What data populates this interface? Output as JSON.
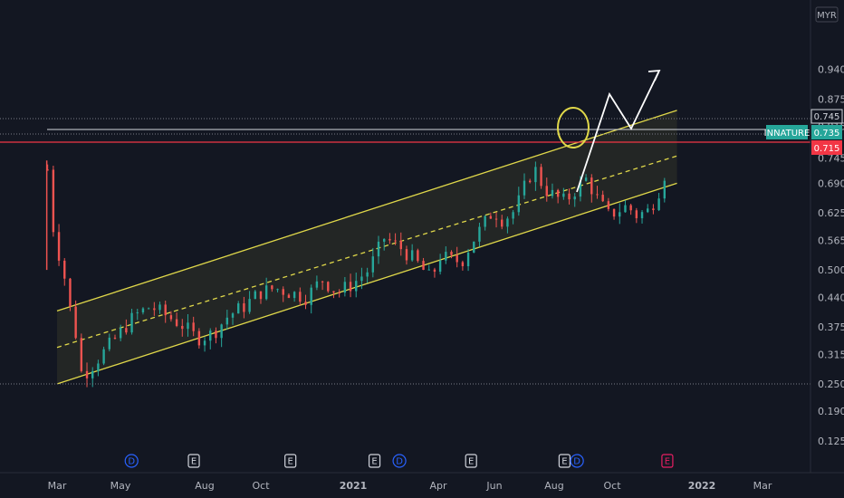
{
  "chart_data": {
    "type": "candlestick",
    "currency_label": "MYR",
    "symbol": "INNATURE",
    "yticks": [
      "0.940",
      "0.875",
      "0.815",
      "0.745",
      "0.690",
      "0.625",
      "0.565",
      "0.500",
      "0.440",
      "0.375",
      "0.315",
      "0.250",
      "0.190",
      "0.125"
    ],
    "xticks": [
      "Mar",
      "May",
      "Aug",
      "Oct",
      "2021",
      "Apr",
      "Jun",
      "Aug",
      "Oct",
      "2022",
      "Mar"
    ],
    "last_price": "0.735",
    "resistance_price": "0.715",
    "level_price": "0.745",
    "support_level": "0.250",
    "ipo_high": "0.74",
    "channel": {
      "upper_start": 0.41,
      "upper_end": 0.85,
      "mid_start": 0.33,
      "mid_end": 0.75,
      "lower_start": 0.25,
      "lower_end": 0.69
    },
    "events": [
      {
        "type": "D",
        "x_month": 2.1
      },
      {
        "type": "E",
        "x_month": 4.1
      },
      {
        "type": "E",
        "x_month": 7.2
      },
      {
        "type": "E",
        "x_month": 9.9
      },
      {
        "type": "D",
        "x_month": 10.7
      },
      {
        "type": "E",
        "x_month": 13.0
      },
      {
        "type": "E",
        "x_month": 16.0
      },
      {
        "type": "D",
        "x_month": 16.4
      },
      {
        "type": "E",
        "x_month": 19.3
      }
    ],
    "projection": "up-down-up arrow above channel",
    "colors": {
      "bg": "#131722",
      "up": "#26a69a",
      "down": "#ef5350",
      "channel": "#e0d84a",
      "resistance": "#f23645",
      "symbol_badge": "#26a69a",
      "dotted": "#787b86"
    }
  }
}
